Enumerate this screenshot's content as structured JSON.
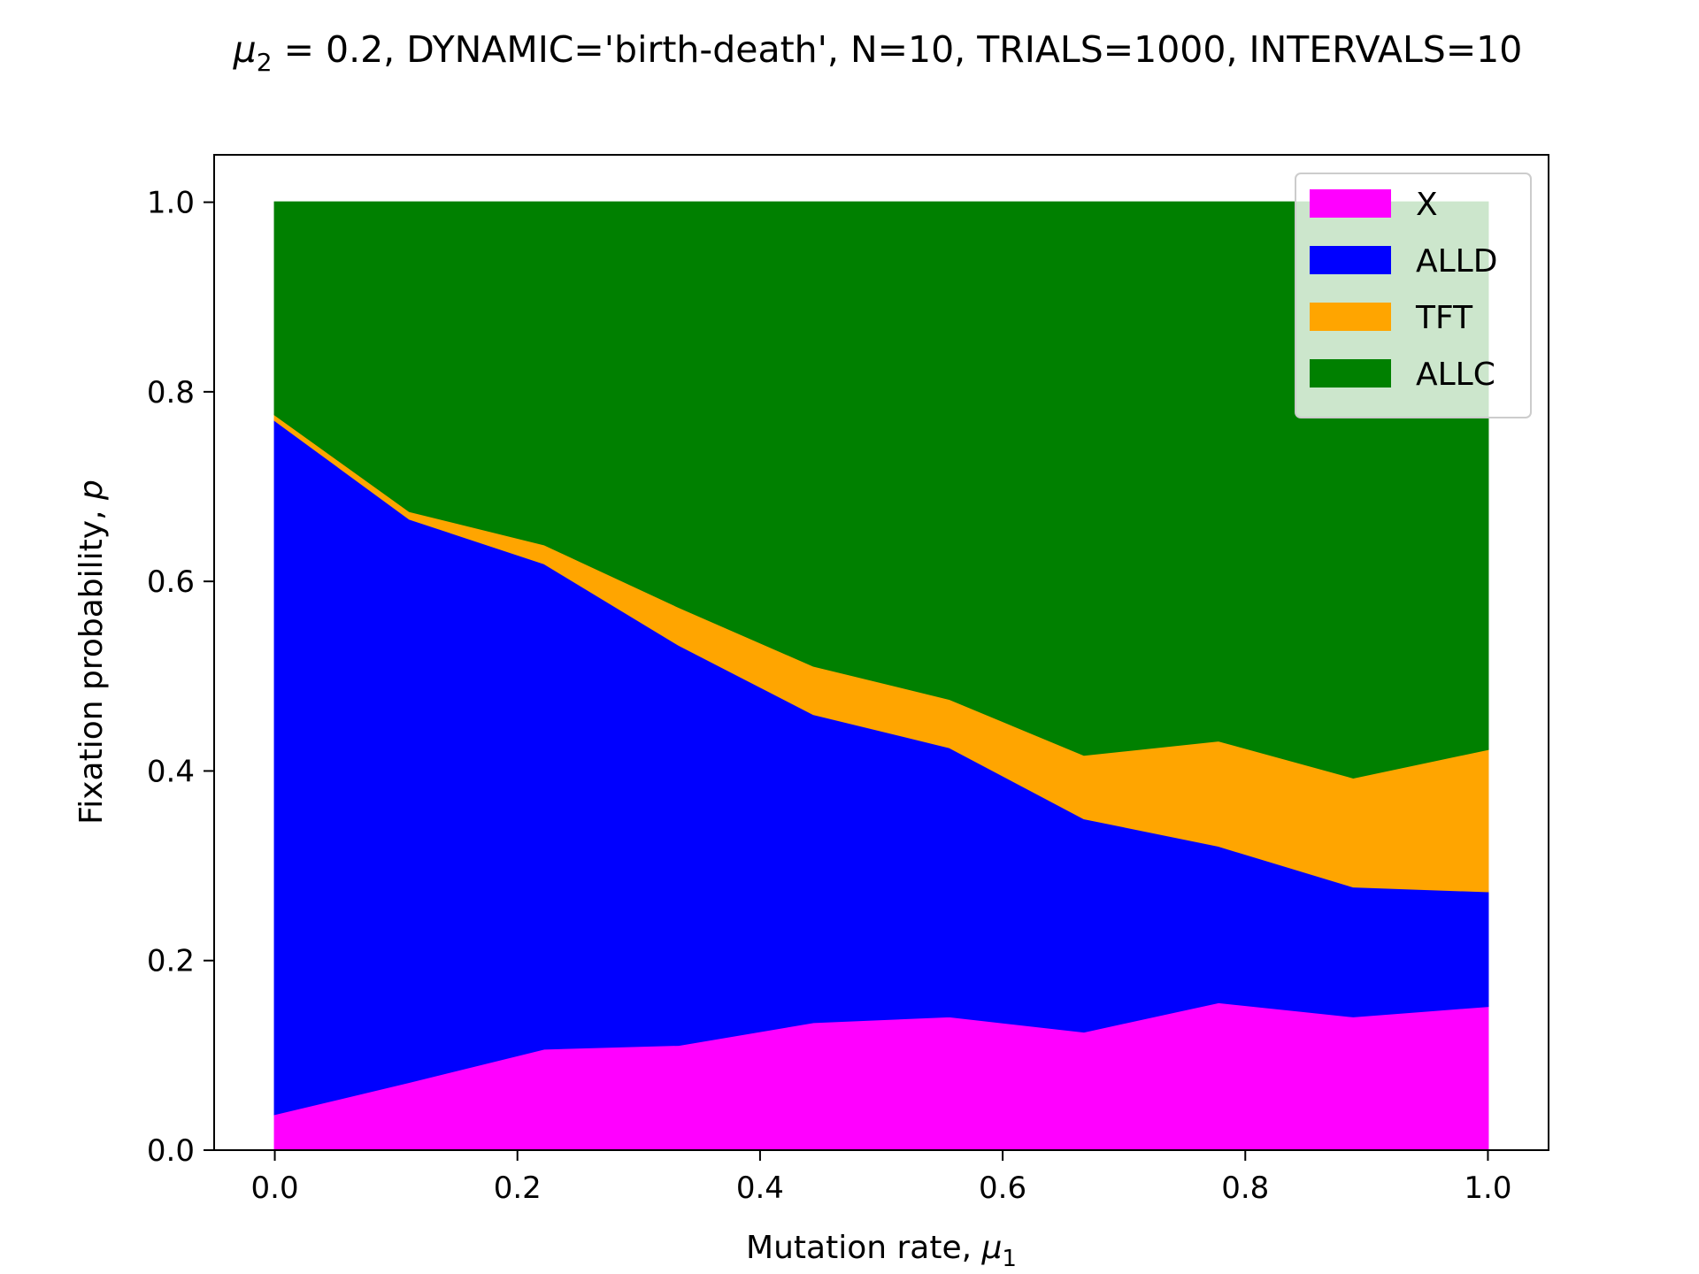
{
  "chart_data": {
    "type": "area",
    "stacked": true,
    "title": {
      "mu_symbol": "μ",
      "mu_subscript": "2",
      "rest": " = 0.2, DYNAMIC='birth-death', N=10, TRIALS=1000, INTERVALS=10"
    },
    "xlabel": {
      "text": "Mutation rate, ",
      "mu_symbol": "μ",
      "mu_subscript": "1"
    },
    "ylabel": {
      "text": "Fixation probability, ",
      "var": "p"
    },
    "xlim": [
      -0.05,
      1.05
    ],
    "ylim": [
      0.0,
      1.05
    ],
    "xticks": [
      "0.0",
      "0.2",
      "0.4",
      "0.6",
      "0.8",
      "1.0"
    ],
    "yticks": [
      "0.0",
      "0.2",
      "0.4",
      "0.6",
      "0.8",
      "1.0"
    ],
    "grid": false,
    "legend_position": "top-right",
    "x": [
      0.0,
      0.111,
      0.222,
      0.333,
      0.444,
      0.556,
      0.667,
      0.778,
      0.889,
      1.0
    ],
    "series": [
      {
        "name": "X",
        "color": "#ff00ff",
        "values": [
          0.038,
          0.072,
          0.107,
          0.111,
          0.135,
          0.141,
          0.125,
          0.156,
          0.141,
          0.152
        ]
      },
      {
        "name": "ALLD",
        "color": "#0000ff",
        "values": [
          0.732,
          0.594,
          0.512,
          0.422,
          0.325,
          0.284,
          0.225,
          0.165,
          0.137,
          0.121
        ]
      },
      {
        "name": "TFT",
        "color": "#ffa500",
        "values": [
          0.006,
          0.008,
          0.02,
          0.04,
          0.051,
          0.051,
          0.067,
          0.111,
          0.115,
          0.15
        ]
      },
      {
        "name": "ALLC",
        "color": "#008000",
        "values": [
          0.224,
          0.326,
          0.361,
          0.427,
          0.489,
          0.524,
          0.583,
          0.568,
          0.607,
          0.577
        ]
      }
    ]
  }
}
